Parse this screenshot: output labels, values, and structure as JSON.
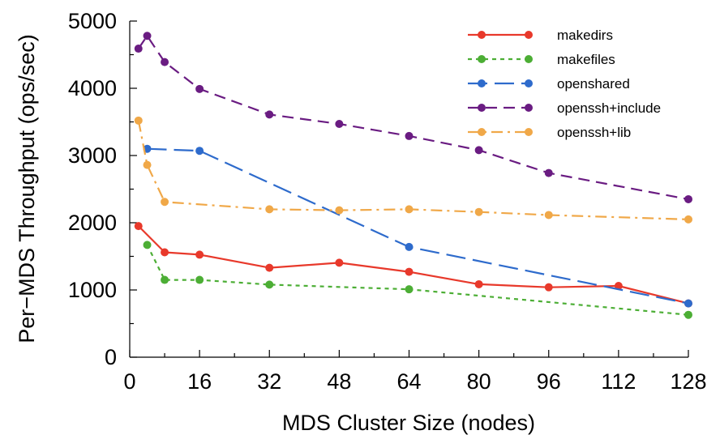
{
  "chart_data": {
    "type": "line",
    "title": "",
    "xlabel": "MDS Cluster Size (nodes)",
    "ylabel": "Per−MDS Throughput (ops/sec)",
    "xlim": [
      0,
      128
    ],
    "ylim": [
      0,
      5000
    ],
    "xticks": [
      0,
      16,
      32,
      48,
      64,
      80,
      96,
      112,
      128
    ],
    "xtick_labels": [
      "0",
      "16",
      "32",
      "48",
      "64",
      "80",
      "96",
      "112",
      "128"
    ],
    "yticks": [
      0,
      1000,
      2000,
      3000,
      4000,
      5000
    ],
    "ytick_labels": [
      "0",
      "1000",
      "2000",
      "3000",
      "4000",
      "5000"
    ],
    "grid": false,
    "legend_position": "top-right",
    "series": [
      {
        "name": "makedirs",
        "color": "#e8392b",
        "line_style": "solid",
        "x": [
          2,
          8,
          16,
          32,
          48,
          64,
          80,
          96,
          112,
          128
        ],
        "y": [
          1950,
          1560,
          1525,
          1330,
          1405,
          1270,
          1085,
          1040,
          1060,
          800
        ]
      },
      {
        "name": "makefiles",
        "color": "#4cae35",
        "line_style": "dotted",
        "x": [
          4,
          8,
          16,
          32,
          64,
          128
        ],
        "y": [
          1670,
          1150,
          1150,
          1080,
          1010,
          630
        ]
      },
      {
        "name": "openshared",
        "color": "#2e6bcc",
        "line_style": "long-dash",
        "x": [
          4,
          16,
          64,
          128
        ],
        "y": [
          3100,
          3070,
          1640,
          800
        ]
      },
      {
        "name": "openssh+include",
        "color": "#6a1c82",
        "line_style": "dash",
        "x": [
          2,
          4,
          8,
          16,
          32,
          48,
          64,
          80,
          96,
          128
        ],
        "y": [
          4590,
          4780,
          4390,
          3990,
          3610,
          3470,
          3290,
          3080,
          2740,
          2350
        ]
      },
      {
        "name": "openssh+lib",
        "color": "#f0a848",
        "line_style": "dash-dot",
        "x": [
          2,
          4,
          8,
          32,
          48,
          64,
          80,
          96,
          128
        ],
        "y": [
          3520,
          2860,
          2310,
          2200,
          2185,
          2200,
          2160,
          2115,
          2050
        ]
      }
    ]
  }
}
